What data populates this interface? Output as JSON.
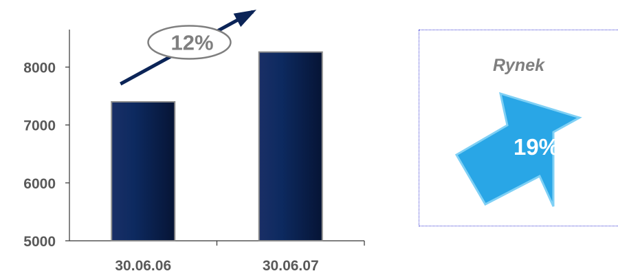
{
  "chart_data": {
    "type": "bar",
    "categories": [
      "30.06.06",
      "30.06.07"
    ],
    "values": [
      7400,
      8260
    ],
    "ylim": [
      5000,
      8600
    ],
    "yticks": [
      5000,
      6000,
      7000,
      8000
    ],
    "title": "",
    "xlabel": "",
    "ylabel": "",
    "grid": false,
    "bar_color": "#0b2457",
    "annotation": {
      "label": "12%",
      "arrow_color": "#0b2457",
      "ellipse_stroke": "#7f7f7f"
    }
  },
  "market_panel": {
    "title": "Rynek",
    "value": "19%",
    "arrow_color": "#29a6e6",
    "arrow_edge_color": "#7fd0f5"
  }
}
